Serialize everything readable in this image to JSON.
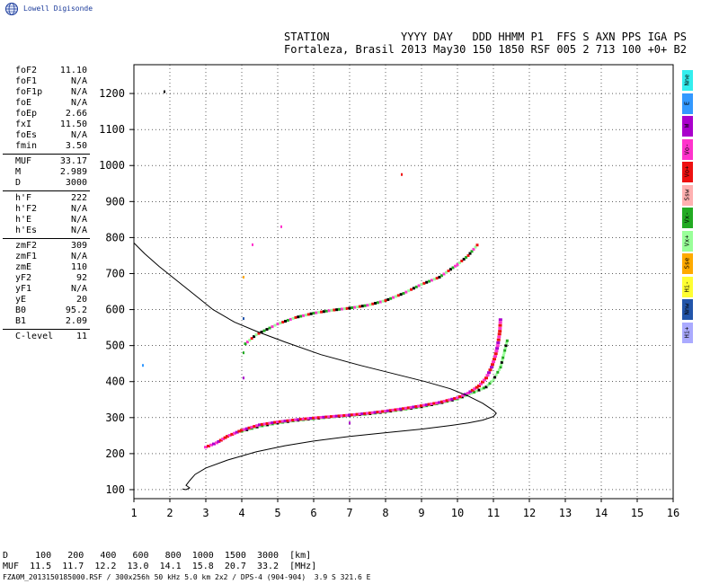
{
  "logo": {
    "text": "Lowell Digisonde",
    "icon": "globe-icon"
  },
  "header": {
    "line1": "STATION           YYYY DAY   DDD HHMM P1  FFS S AXN PPS IGA PS",
    "line2": "Fortaleza, Brasil 2013 May30 150 1850 RSF 005 2 713 100 +0+ B2"
  },
  "params": {
    "group1": [
      {
        "key": "foF2",
        "value": "11.10"
      },
      {
        "key": "foF1",
        "value": "N/A"
      },
      {
        "key": "foF1p",
        "value": "N/A"
      },
      {
        "key": "foE",
        "value": "N/A"
      },
      {
        "key": "foEp",
        "value": "2.66"
      },
      {
        "key": "fxI",
        "value": "11.50"
      },
      {
        "key": "foEs",
        "value": "N/A"
      },
      {
        "key": "fmin",
        "value": "3.50"
      }
    ],
    "group2": [
      {
        "key": "MUF",
        "value": "33.17"
      },
      {
        "key": "M",
        "value": "2.989"
      },
      {
        "key": "D",
        "value": "3000"
      }
    ],
    "group3": [
      {
        "key": "h'F",
        "value": "222"
      },
      {
        "key": "h'F2",
        "value": "N/A"
      },
      {
        "key": "h'E",
        "value": "N/A"
      },
      {
        "key": "h'Es",
        "value": "N/A"
      }
    ],
    "group4": [
      {
        "key": "zmF2",
        "value": "309"
      },
      {
        "key": "zmF1",
        "value": "N/A"
      },
      {
        "key": "zmE",
        "value": "110"
      },
      {
        "key": "yF2",
        "value": "92"
      },
      {
        "key": "yF1",
        "value": "N/A"
      },
      {
        "key": "yE",
        "value": "20"
      },
      {
        "key": "B0",
        "value": "95.2"
      },
      {
        "key": "B1",
        "value": "2.09"
      }
    ],
    "group5": [
      {
        "key": "C-level",
        "value": "11"
      }
    ]
  },
  "legend": [
    {
      "label": "Nne",
      "color": "#33eeee"
    },
    {
      "label": "E",
      "color": "#3399ff"
    },
    {
      "label": "W",
      "color": "#aa00cc"
    },
    {
      "label": "Vo-",
      "color": "#ff33cc"
    },
    {
      "label": "Vo+",
      "color": "#ee1111"
    },
    {
      "label": "Ssw",
      "color": "#ffb0b0"
    },
    {
      "label": "Vx-",
      "color": "#22aa22"
    },
    {
      "label": "Vx+",
      "color": "#99ff99"
    },
    {
      "label": "Sse",
      "color": "#ffaa00"
    },
    {
      "label": "Hi-",
      "color": "#ffff33"
    },
    {
      "label": "Nnw",
      "color": "#2255aa"
    },
    {
      "label": "Hi+",
      "color": "#aaaaff"
    }
  ],
  "muf_table": {
    "line1": "D     100   200   400   600   800  1000  1500  3000  [km]",
    "line2": "MUF  11.5  11.7  12.2  13.0  14.1  15.8  20.7  33.2  [MHz]"
  },
  "footer": "FZA0M_2013150185000.RSF / 300x256h 50 kHz 5.0 km 2x2 / DPS-4 (904-904)  3.9 S 321.6 E",
  "chart_data": {
    "type": "scatter",
    "xlim": [
      1,
      16
    ],
    "ylim": [
      75,
      1280
    ],
    "xticks": [
      1,
      2,
      3,
      4,
      5,
      6,
      7,
      8,
      9,
      10,
      11,
      12,
      13,
      14,
      15,
      16
    ],
    "yticks": [
      100,
      200,
      300,
      400,
      500,
      600,
      700,
      800,
      900,
      1000,
      1100,
      1200
    ],
    "grid": true,
    "profile": [
      [
        1.0,
        785
      ],
      [
        1.3,
        755
      ],
      [
        1.7,
        720
      ],
      [
        2.2,
        680
      ],
      [
        2.7,
        640
      ],
      [
        3.2,
        600
      ],
      [
        3.8,
        565
      ],
      [
        4.4,
        540
      ],
      [
        5.2,
        510
      ],
      [
        6.2,
        475
      ],
      [
        7.3,
        445
      ],
      [
        8.3,
        420
      ],
      [
        9.1,
        400
      ],
      [
        9.8,
        380
      ],
      [
        10.3,
        360
      ],
      [
        10.7,
        340
      ],
      [
        11.0,
        320
      ],
      [
        11.08,
        312
      ],
      [
        11.0,
        303
      ],
      [
        10.7,
        293
      ],
      [
        10.3,
        285
      ],
      [
        9.8,
        278
      ],
      [
        9.0,
        268
      ],
      [
        8.0,
        258
      ],
      [
        7.0,
        248
      ],
      [
        6.0,
        235
      ],
      [
        5.2,
        222
      ],
      [
        4.4,
        205
      ],
      [
        3.6,
        182
      ],
      [
        3.0,
        160
      ],
      [
        2.7,
        142
      ],
      [
        2.55,
        125
      ],
      [
        2.45,
        112
      ],
      [
        2.55,
        105
      ],
      [
        2.45,
        100
      ],
      [
        2.35,
        102
      ]
    ],
    "f_trace_o": [
      [
        3.0,
        218
      ],
      [
        3.3,
        230
      ],
      [
        3.6,
        248
      ],
      [
        4.0,
        265
      ],
      [
        4.5,
        280
      ],
      [
        5.0,
        288
      ],
      [
        5.5,
        294
      ],
      [
        6.0,
        299
      ],
      [
        6.5,
        303
      ],
      [
        7.0,
        307
      ],
      [
        7.5,
        312
      ],
      [
        8.0,
        318
      ],
      [
        8.5,
        325
      ],
      [
        9.0,
        333
      ],
      [
        9.5,
        342
      ],
      [
        10.0,
        355
      ],
      [
        10.3,
        368
      ],
      [
        10.6,
        388
      ],
      [
        10.8,
        410
      ],
      [
        10.95,
        440
      ],
      [
        11.05,
        470
      ],
      [
        11.12,
        500
      ],
      [
        11.18,
        540
      ],
      [
        11.2,
        580
      ]
    ],
    "f_trace_x": [
      [
        4.0,
        262
      ],
      [
        4.5,
        276
      ],
      [
        5.0,
        285
      ],
      [
        5.5,
        292
      ],
      [
        6.0,
        297
      ],
      [
        6.5,
        302
      ],
      [
        7.0,
        306
      ],
      [
        7.5,
        310
      ],
      [
        8.0,
        316
      ],
      [
        8.5,
        323
      ],
      [
        9.0,
        330
      ],
      [
        9.5,
        340
      ],
      [
        10.0,
        352
      ],
      [
        10.4,
        368
      ],
      [
        10.8,
        385
      ],
      [
        11.0,
        405
      ],
      [
        11.2,
        440
      ],
      [
        11.3,
        480
      ],
      [
        11.4,
        520
      ]
    ],
    "mult_trace": [
      [
        4.1,
        505
      ],
      [
        4.4,
        530
      ],
      [
        4.7,
        545
      ],
      [
        5.0,
        560
      ],
      [
        5.5,
        578
      ],
      [
        6.0,
        590
      ],
      [
        6.5,
        598
      ],
      [
        7.0,
        604
      ],
      [
        7.5,
        612
      ],
      [
        8.0,
        625
      ],
      [
        8.5,
        645
      ],
      [
        9.0,
        670
      ],
      [
        9.5,
        690
      ],
      [
        10.0,
        725
      ],
      [
        10.3,
        750
      ],
      [
        10.6,
        785
      ]
    ],
    "stray_points": [
      [
        1.85,
        1205,
        "#000000"
      ],
      [
        1.25,
        445,
        "#3399ff"
      ],
      [
        8.45,
        975,
        "#ee1111"
      ],
      [
        5.1,
        830,
        "#ff33cc"
      ],
      [
        4.3,
        780,
        "#ff33cc"
      ],
      [
        4.05,
        410,
        "#aa00cc"
      ],
      [
        4.05,
        575,
        "#2255aa"
      ],
      [
        4.05,
        480,
        "#22aa22"
      ],
      [
        7.0,
        285,
        "#aa00cc"
      ],
      [
        4.05,
        690,
        "#ffaa00"
      ]
    ]
  }
}
